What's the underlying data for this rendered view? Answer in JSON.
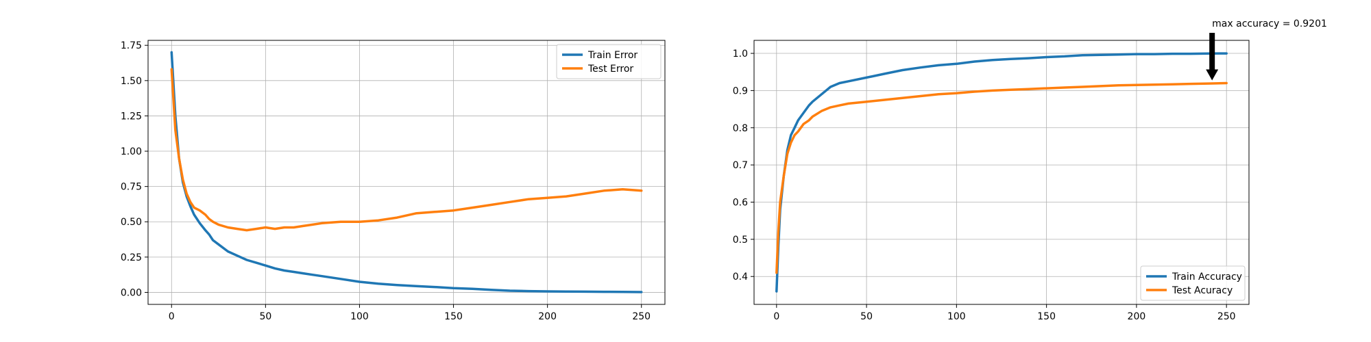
{
  "chart_data": [
    {
      "type": "line",
      "title": "",
      "xlabel": "",
      "ylabel": "",
      "xlim": [
        -12.5,
        262.5
      ],
      "ylim": [
        -0.085,
        1.785
      ],
      "xticks": [
        0,
        50,
        100,
        150,
        200,
        250
      ],
      "yticks": [
        0.0,
        0.25,
        0.5,
        0.75,
        1.0,
        1.25,
        1.5,
        1.75
      ],
      "ytick_labels": [
        "0.00",
        "0.25",
        "0.50",
        "0.75",
        "1.00",
        "1.25",
        "1.50",
        "1.75"
      ],
      "xtick_labels": [
        "0",
        "50",
        "100",
        "150",
        "200",
        "250"
      ],
      "grid": true,
      "legend_position": "top-right",
      "series": [
        {
          "name": "Train Error",
          "color": "#1f77b4",
          "x": [
            0,
            2,
            4,
            6,
            8,
            10,
            12,
            15,
            18,
            20,
            22,
            25,
            30,
            35,
            40,
            45,
            50,
            55,
            60,
            65,
            70,
            75,
            80,
            90,
            100,
            110,
            120,
            130,
            140,
            150,
            160,
            170,
            180,
            190,
            200,
            210,
            220,
            230,
            240,
            250
          ],
          "values": [
            1.7,
            1.25,
            0.95,
            0.78,
            0.68,
            0.61,
            0.55,
            0.49,
            0.44,
            0.41,
            0.37,
            0.34,
            0.29,
            0.26,
            0.23,
            0.21,
            0.19,
            0.17,
            0.155,
            0.145,
            0.135,
            0.125,
            0.115,
            0.095,
            0.075,
            0.062,
            0.052,
            0.045,
            0.038,
            0.03,
            0.025,
            0.018,
            0.012,
            0.009,
            0.007,
            0.006,
            0.005,
            0.004,
            0.003,
            0.002
          ]
        },
        {
          "name": "Test Error",
          "color": "#ff7f0e",
          "x": [
            0,
            2,
            4,
            6,
            8,
            10,
            12,
            15,
            18,
            20,
            22,
            25,
            30,
            35,
            40,
            45,
            50,
            55,
            60,
            65,
            70,
            75,
            80,
            90,
            100,
            110,
            120,
            130,
            140,
            150,
            160,
            170,
            180,
            190,
            200,
            210,
            220,
            230,
            240,
            250
          ],
          "values": [
            1.58,
            1.15,
            0.95,
            0.8,
            0.7,
            0.64,
            0.6,
            0.58,
            0.55,
            0.52,
            0.5,
            0.48,
            0.46,
            0.45,
            0.44,
            0.45,
            0.46,
            0.45,
            0.46,
            0.46,
            0.47,
            0.48,
            0.49,
            0.5,
            0.5,
            0.51,
            0.53,
            0.56,
            0.57,
            0.58,
            0.6,
            0.62,
            0.64,
            0.66,
            0.67,
            0.68,
            0.7,
            0.72,
            0.73,
            0.72
          ]
        }
      ]
    },
    {
      "type": "line",
      "title": "",
      "xlabel": "",
      "ylabel": "",
      "xlim": [
        -12.5,
        262.5
      ],
      "ylim": [
        0.325,
        1.035
      ],
      "xticks": [
        0,
        50,
        100,
        150,
        200,
        250
      ],
      "yticks": [
        0.4,
        0.5,
        0.6,
        0.7,
        0.8,
        0.9,
        1.0
      ],
      "ytick_labels": [
        "0.4",
        "0.5",
        "0.6",
        "0.7",
        "0.8",
        "0.9",
        "1.0"
      ],
      "xtick_labels": [
        "0",
        "50",
        "100",
        "150",
        "200",
        "250"
      ],
      "grid": true,
      "legend_position": "bottom-right",
      "annotation": {
        "text": "max accuracy = 0.9201",
        "x": 242,
        "y": 0.92
      },
      "series": [
        {
          "name": "Train Accuracy",
          "color": "#1f77b4",
          "x": [
            0,
            1,
            2,
            4,
            6,
            8,
            10,
            12,
            15,
            18,
            20,
            25,
            30,
            35,
            40,
            50,
            60,
            70,
            80,
            90,
            100,
            110,
            120,
            130,
            140,
            150,
            160,
            170,
            180,
            190,
            200,
            210,
            220,
            230,
            240,
            250
          ],
          "values": [
            0.36,
            0.48,
            0.58,
            0.67,
            0.74,
            0.78,
            0.8,
            0.82,
            0.84,
            0.86,
            0.87,
            0.89,
            0.91,
            0.92,
            0.925,
            0.935,
            0.945,
            0.955,
            0.962,
            0.968,
            0.972,
            0.978,
            0.982,
            0.985,
            0.987,
            0.99,
            0.992,
            0.995,
            0.996,
            0.997,
            0.998,
            0.998,
            0.999,
            0.999,
            0.9995,
            0.9998
          ]
        },
        {
          "name": "Test Acuracy",
          "color": "#ff7f0e",
          "x": [
            0,
            1,
            2,
            4,
            6,
            8,
            10,
            12,
            15,
            18,
            20,
            25,
            30,
            35,
            40,
            50,
            60,
            70,
            80,
            90,
            100,
            110,
            120,
            130,
            140,
            150,
            160,
            170,
            180,
            190,
            200,
            210,
            220,
            230,
            240,
            250
          ],
          "values": [
            0.41,
            0.52,
            0.6,
            0.67,
            0.73,
            0.76,
            0.78,
            0.79,
            0.81,
            0.82,
            0.83,
            0.845,
            0.855,
            0.86,
            0.865,
            0.87,
            0.875,
            0.88,
            0.885,
            0.89,
            0.893,
            0.897,
            0.9,
            0.902,
            0.904,
            0.906,
            0.908,
            0.91,
            0.912,
            0.914,
            0.915,
            0.916,
            0.917,
            0.918,
            0.919,
            0.9201
          ]
        }
      ]
    }
  ]
}
